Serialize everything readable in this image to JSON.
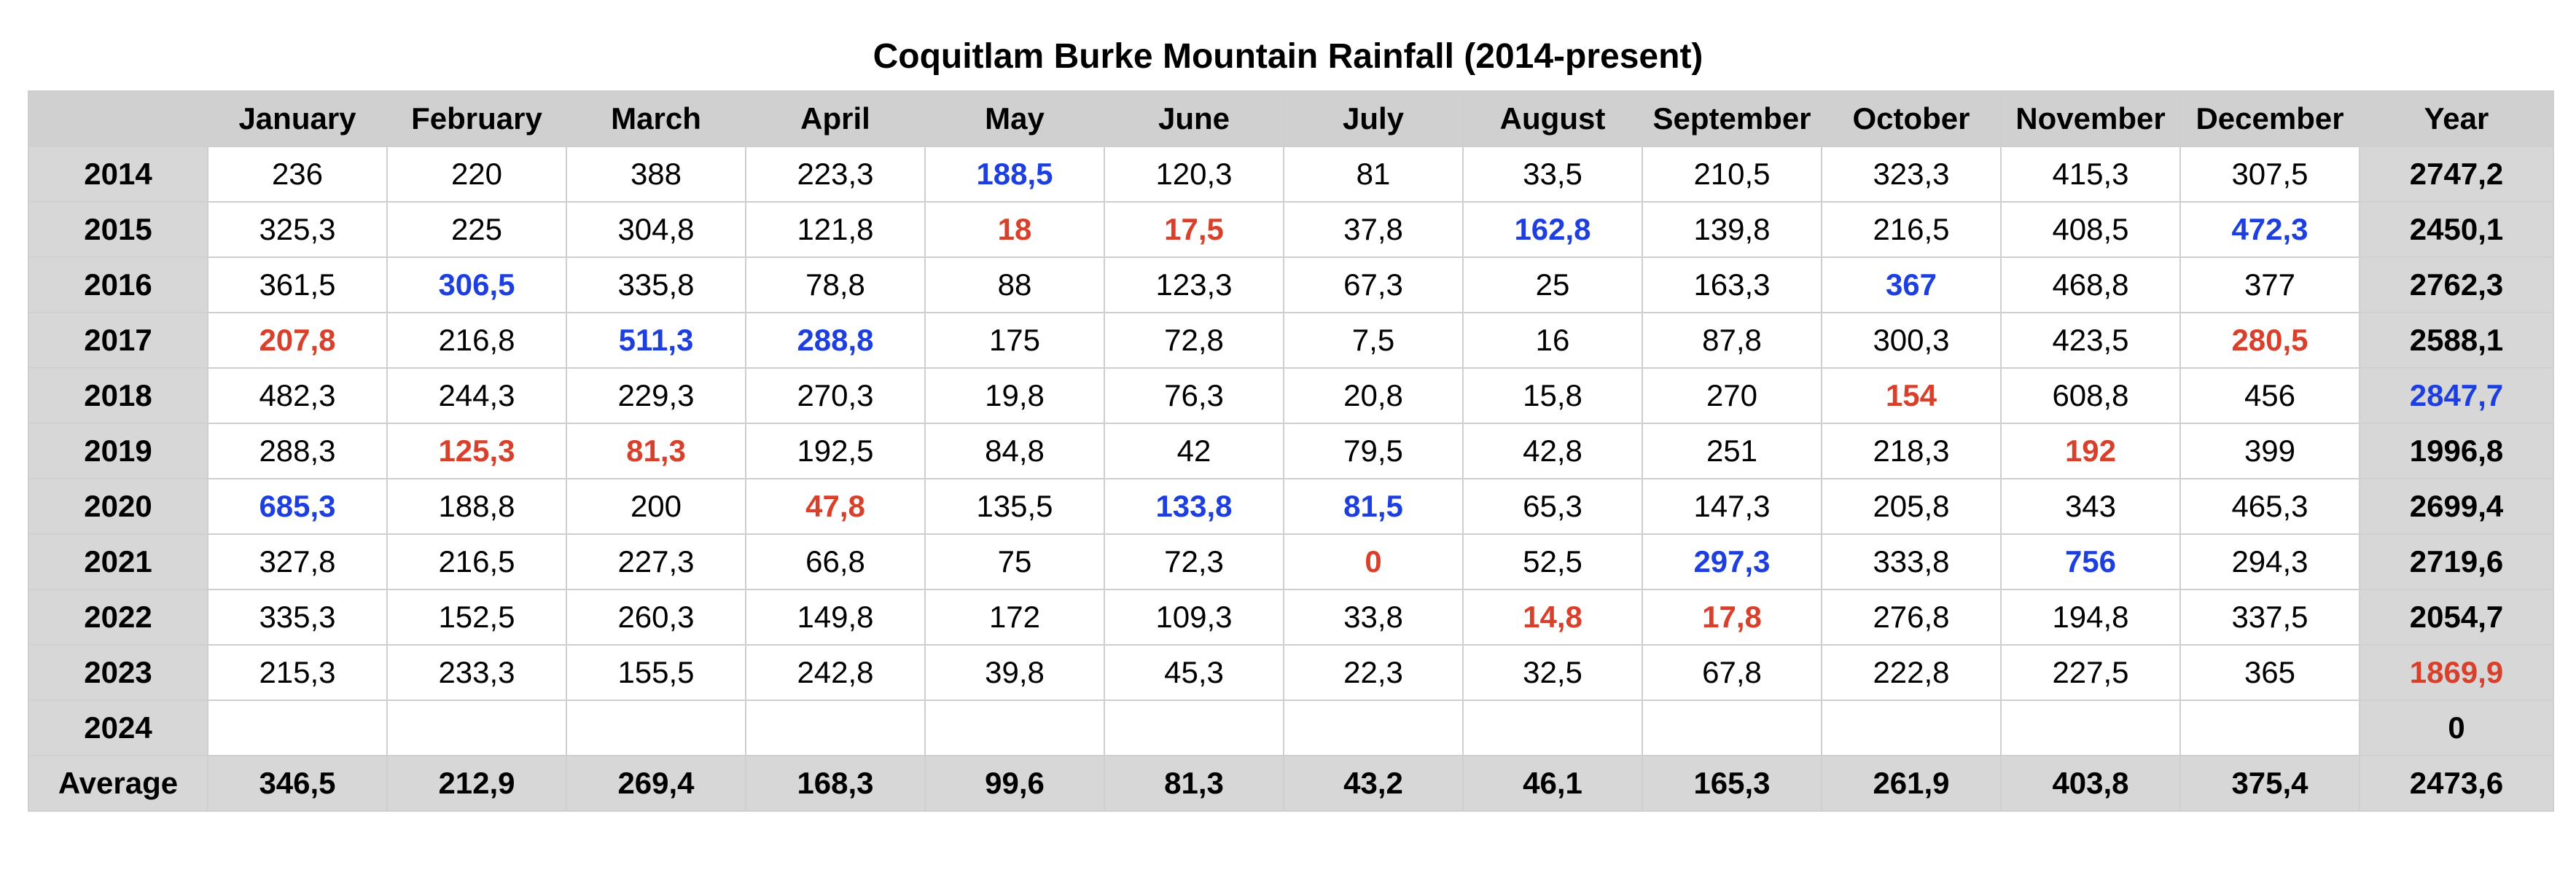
{
  "title": "Coquitlam Burke Mountain Rainfall (2014-present)",
  "colors": {
    "lowest_value": "#d9402b",
    "highest_value": "#1e3fe0",
    "header_background": "#d0d0d0"
  },
  "table": {
    "corner": "",
    "columns": [
      "January",
      "February",
      "March",
      "April",
      "May",
      "June",
      "July",
      "August",
      "September",
      "October",
      "November",
      "December",
      "Year"
    ],
    "rows": [
      {
        "label": "2014",
        "cells": [
          {
            "v": "236"
          },
          {
            "v": "220"
          },
          {
            "v": "388"
          },
          {
            "v": "223,3"
          },
          {
            "v": "188,5",
            "s": "high"
          },
          {
            "v": "120,3"
          },
          {
            "v": "81"
          },
          {
            "v": "33,5"
          },
          {
            "v": "210,5"
          },
          {
            "v": "323,3"
          },
          {
            "v": "415,3"
          },
          {
            "v": "307,5"
          },
          {
            "v": "2747,2"
          }
        ]
      },
      {
        "label": "2015",
        "cells": [
          {
            "v": "325,3"
          },
          {
            "v": "225"
          },
          {
            "v": "304,8"
          },
          {
            "v": "121,8"
          },
          {
            "v": "18",
            "s": "low"
          },
          {
            "v": "17,5",
            "s": "low"
          },
          {
            "v": "37,8"
          },
          {
            "v": "162,8",
            "s": "high"
          },
          {
            "v": "139,8"
          },
          {
            "v": "216,5"
          },
          {
            "v": "408,5"
          },
          {
            "v": "472,3",
            "s": "high"
          },
          {
            "v": "2450,1"
          }
        ]
      },
      {
        "label": "2016",
        "cells": [
          {
            "v": "361,5"
          },
          {
            "v": "306,5",
            "s": "high"
          },
          {
            "v": "335,8"
          },
          {
            "v": "78,8"
          },
          {
            "v": "88"
          },
          {
            "v": "123,3"
          },
          {
            "v": "67,3"
          },
          {
            "v": "25"
          },
          {
            "v": "163,3"
          },
          {
            "v": "367",
            "s": "high"
          },
          {
            "v": "468,8"
          },
          {
            "v": "377"
          },
          {
            "v": "2762,3"
          }
        ]
      },
      {
        "label": "2017",
        "cells": [
          {
            "v": "207,8",
            "s": "low"
          },
          {
            "v": "216,8"
          },
          {
            "v": "511,3",
            "s": "high"
          },
          {
            "v": "288,8",
            "s": "high"
          },
          {
            "v": "175"
          },
          {
            "v": "72,8"
          },
          {
            "v": "7,5"
          },
          {
            "v": "16"
          },
          {
            "v": "87,8"
          },
          {
            "v": "300,3"
          },
          {
            "v": "423,5"
          },
          {
            "v": "280,5",
            "s": "low"
          },
          {
            "v": "2588,1"
          }
        ]
      },
      {
        "label": "2018",
        "cells": [
          {
            "v": "482,3"
          },
          {
            "v": "244,3"
          },
          {
            "v": "229,3"
          },
          {
            "v": "270,3"
          },
          {
            "v": "19,8"
          },
          {
            "v": "76,3"
          },
          {
            "v": "20,8"
          },
          {
            "v": "15,8"
          },
          {
            "v": "270"
          },
          {
            "v": "154",
            "s": "low"
          },
          {
            "v": "608,8"
          },
          {
            "v": "456"
          },
          {
            "v": "2847,7",
            "s": "high"
          }
        ]
      },
      {
        "label": "2019",
        "cells": [
          {
            "v": "288,3"
          },
          {
            "v": "125,3",
            "s": "low"
          },
          {
            "v": "81,3",
            "s": "low"
          },
          {
            "v": "192,5"
          },
          {
            "v": "84,8"
          },
          {
            "v": "42"
          },
          {
            "v": "79,5"
          },
          {
            "v": "42,8"
          },
          {
            "v": "251"
          },
          {
            "v": "218,3"
          },
          {
            "v": "192",
            "s": "low"
          },
          {
            "v": "399"
          },
          {
            "v": "1996,8"
          }
        ]
      },
      {
        "label": "2020",
        "cells": [
          {
            "v": "685,3",
            "s": "high"
          },
          {
            "v": "188,8"
          },
          {
            "v": "200"
          },
          {
            "v": "47,8",
            "s": "low"
          },
          {
            "v": "135,5"
          },
          {
            "v": "133,8",
            "s": "high"
          },
          {
            "v": "81,5",
            "s": "high"
          },
          {
            "v": "65,3"
          },
          {
            "v": "147,3"
          },
          {
            "v": "205,8"
          },
          {
            "v": "343"
          },
          {
            "v": "465,3"
          },
          {
            "v": "2699,4"
          }
        ]
      },
      {
        "label": "2021",
        "cells": [
          {
            "v": "327,8"
          },
          {
            "v": "216,5"
          },
          {
            "v": "227,3"
          },
          {
            "v": "66,8"
          },
          {
            "v": "75"
          },
          {
            "v": "72,3"
          },
          {
            "v": "0",
            "s": "low"
          },
          {
            "v": "52,5"
          },
          {
            "v": "297,3",
            "s": "high"
          },
          {
            "v": "333,8"
          },
          {
            "v": "756",
            "s": "high"
          },
          {
            "v": "294,3"
          },
          {
            "v": "2719,6"
          }
        ]
      },
      {
        "label": "2022",
        "cells": [
          {
            "v": "335,3"
          },
          {
            "v": "152,5"
          },
          {
            "v": "260,3"
          },
          {
            "v": "149,8"
          },
          {
            "v": "172"
          },
          {
            "v": "109,3"
          },
          {
            "v": "33,8"
          },
          {
            "v": "14,8",
            "s": "low"
          },
          {
            "v": "17,8",
            "s": "low"
          },
          {
            "v": "276,8"
          },
          {
            "v": "194,8"
          },
          {
            "v": "337,5"
          },
          {
            "v": "2054,7"
          }
        ]
      },
      {
        "label": "2023",
        "cells": [
          {
            "v": "215,3"
          },
          {
            "v": "233,3"
          },
          {
            "v": "155,5"
          },
          {
            "v": "242,8"
          },
          {
            "v": "39,8"
          },
          {
            "v": "45,3"
          },
          {
            "v": "22,3"
          },
          {
            "v": "32,5"
          },
          {
            "v": "67,8"
          },
          {
            "v": "222,8"
          },
          {
            "v": "227,5"
          },
          {
            "v": "365"
          },
          {
            "v": "1869,9",
            "s": "low"
          }
        ]
      },
      {
        "label": "2024",
        "cells": [
          {
            "v": ""
          },
          {
            "v": ""
          },
          {
            "v": ""
          },
          {
            "v": ""
          },
          {
            "v": ""
          },
          {
            "v": ""
          },
          {
            "v": ""
          },
          {
            "v": ""
          },
          {
            "v": ""
          },
          {
            "v": ""
          },
          {
            "v": ""
          },
          {
            "v": ""
          },
          {
            "v": "0"
          }
        ]
      }
    ],
    "average": {
      "label": "Average",
      "cells": [
        "346,5",
        "212,9",
        "269,4",
        "168,3",
        "99,6",
        "81,3",
        "43,2",
        "46,1",
        "165,3",
        "261,9",
        "403,8",
        "375,4",
        "2473,6"
      ]
    }
  }
}
